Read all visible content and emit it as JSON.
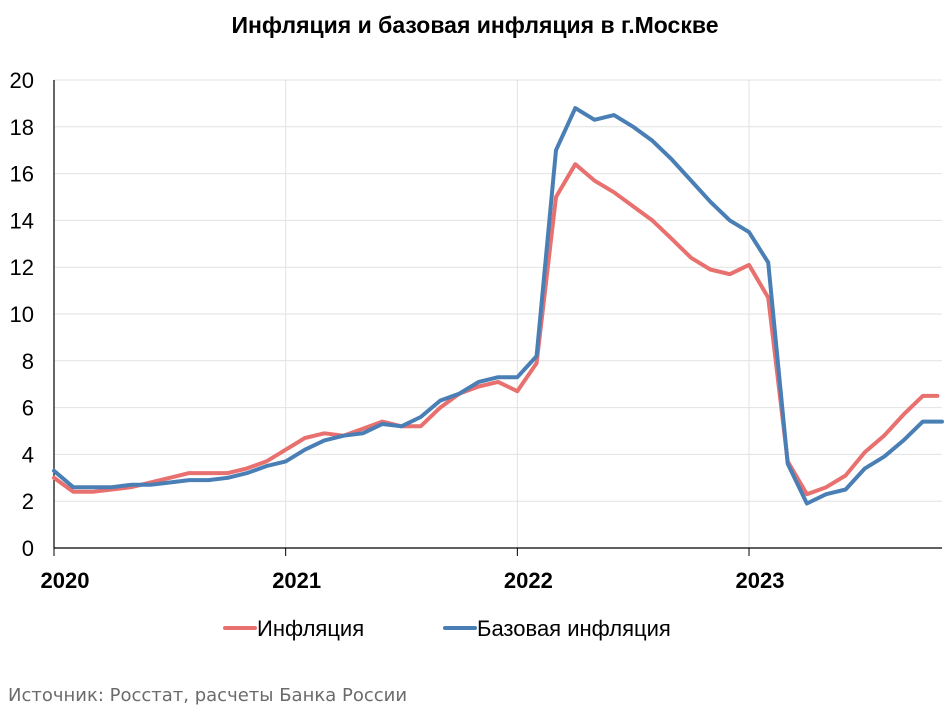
{
  "chart_data": {
    "type": "line",
    "title": "Инфляция и базовая инфляция в г.Москве",
    "xlabel": "",
    "ylabel": "",
    "ylim": [
      0,
      20
    ],
    "yticks": [
      0,
      2,
      4,
      6,
      8,
      10,
      12,
      14,
      16,
      18,
      20
    ],
    "xlim": [
      2020.0,
      2023.833
    ],
    "xticks": [
      2020,
      2021,
      2022,
      2023
    ],
    "xtick_labels": [
      "2020",
      "2021",
      "2022",
      "2023"
    ],
    "grid": true,
    "legend_position": "bottom",
    "x": [
      2020.0,
      2020.083,
      2020.167,
      2020.25,
      2020.333,
      2020.417,
      2020.5,
      2020.583,
      2020.667,
      2020.75,
      2020.833,
      2020.917,
      2021.0,
      2021.083,
      2021.167,
      2021.25,
      2021.333,
      2021.417,
      2021.5,
      2021.583,
      2021.667,
      2021.75,
      2021.833,
      2021.917,
      2022.0,
      2022.083,
      2022.167,
      2022.25,
      2022.333,
      2022.417,
      2022.5,
      2022.583,
      2022.667,
      2022.75,
      2022.833,
      2022.917,
      2023.0,
      2023.083,
      2023.167,
      2023.25,
      2023.333,
      2023.417,
      2023.5,
      2023.583,
      2023.667,
      2023.75,
      2023.833
    ],
    "series": [
      {
        "name": "Инфляция",
        "color": "#e8706f",
        "values": [
          3.0,
          2.4,
          2.4,
          2.5,
          2.6,
          2.8,
          3.0,
          3.2,
          3.2,
          3.2,
          3.4,
          3.7,
          4.2,
          4.7,
          4.9,
          4.8,
          5.1,
          5.4,
          5.2,
          5.2,
          6.0,
          6.6,
          6.9,
          7.1,
          6.7,
          7.9,
          15.0,
          16.4,
          15.7,
          15.2,
          14.6,
          14.0,
          13.2,
          12.4,
          11.9,
          11.7,
          12.1,
          10.7,
          3.7,
          2.3,
          2.6,
          3.1,
          4.1,
          4.8,
          5.7,
          6.5,
          6.5
        ],
        "last_point_partial": true
      },
      {
        "name": "Базовая инфляция",
        "color": "#4a7fb5",
        "values": [
          3.3,
          2.6,
          2.6,
          2.6,
          2.7,
          2.7,
          2.8,
          2.9,
          2.9,
          3.0,
          3.2,
          3.5,
          3.7,
          4.2,
          4.6,
          4.8,
          4.9,
          5.3,
          5.2,
          5.6,
          6.3,
          6.6,
          7.1,
          7.3,
          7.3,
          8.2,
          17.0,
          18.8,
          18.3,
          18.5,
          18.0,
          17.4,
          16.6,
          15.7,
          14.8,
          14.0,
          13.5,
          12.2,
          3.6,
          1.9,
          2.3,
          2.5,
          3.4,
          3.9,
          4.6,
          5.4,
          5.4
        ]
      }
    ]
  },
  "source_note": "Источник: Росстат, расчеты Банка России"
}
